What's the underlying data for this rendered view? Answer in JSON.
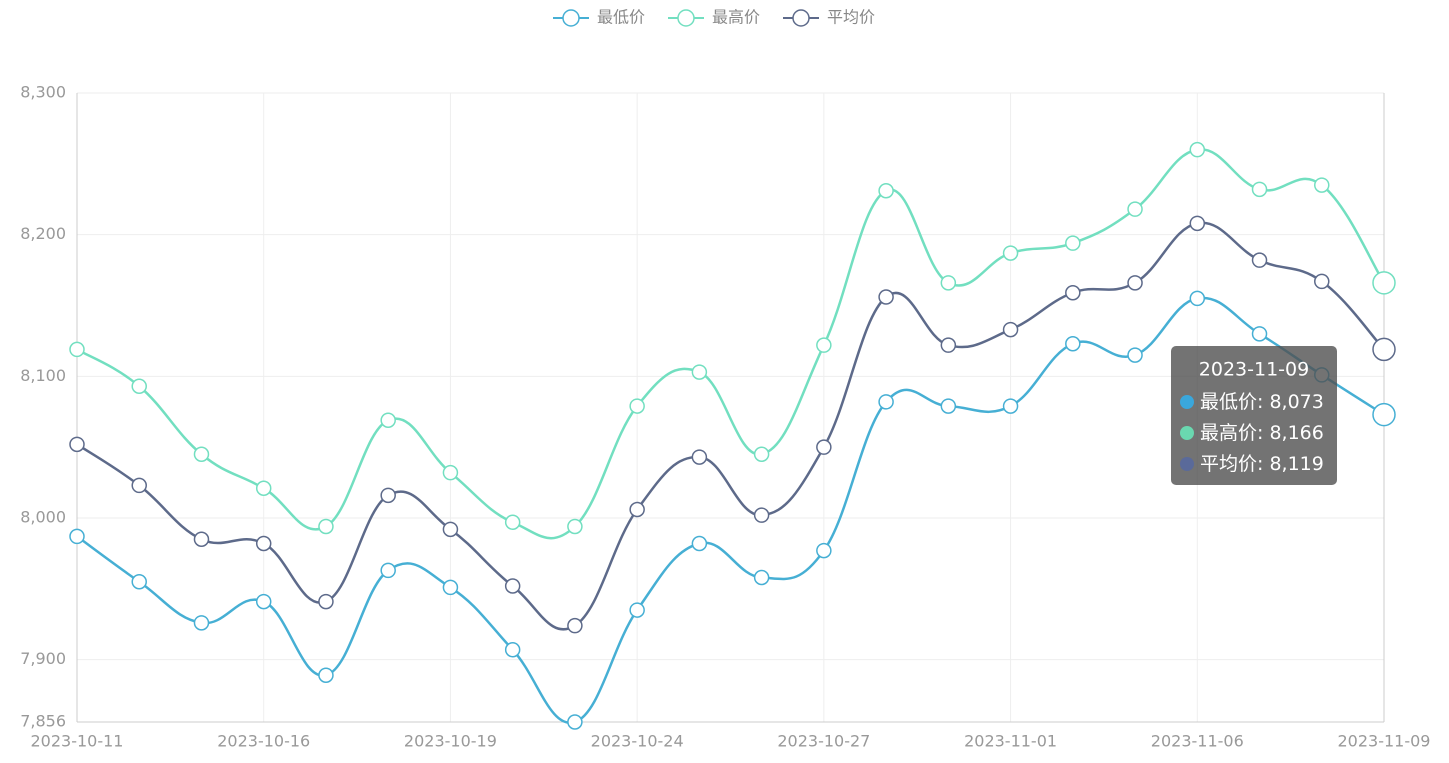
{
  "chart_data": {
    "type": "line",
    "categories": [
      "2023-10-11",
      null,
      null,
      "2023-10-16",
      null,
      null,
      "2023-10-19",
      null,
      null,
      "2023-10-24",
      null,
      null,
      "2023-10-27",
      null,
      null,
      "2023-11-01",
      null,
      null,
      "2023-11-06",
      null,
      null,
      "2023-11-09"
    ],
    "series": [
      {
        "name": "最低价",
        "color": "#46afd4",
        "values": [
          7987,
          7955,
          7926,
          7941,
          7889,
          7963,
          7951,
          7907,
          7856,
          7935,
          7982,
          7958,
          7977,
          8082,
          8079,
          8079,
          8123,
          8115,
          8155,
          8130,
          8101,
          8073
        ]
      },
      {
        "name": "最高价",
        "color": "#72dfc0",
        "values": [
          8119,
          8093,
          8045,
          8021,
          7994,
          8069,
          8032,
          7997,
          7994,
          8079,
          8103,
          8045,
          8122,
          8231,
          8166,
          8187,
          8194,
          8218,
          8260,
          8232,
          8235,
          8166
        ]
      },
      {
        "name": "平均价",
        "color": "#5d6a8a",
        "values": [
          8052,
          8023,
          7985,
          7982,
          7941,
          8016,
          7992,
          7952,
          7924,
          8006,
          8043,
          8002,
          8050,
          8156,
          8122,
          8133,
          8159,
          8166,
          8208,
          8182,
          8167,
          8119
        ]
      }
    ],
    "ylim": [
      7856,
      8300
    ],
    "yticks": [
      {
        "value": 7856,
        "label": "7,856"
      },
      {
        "value": 7900,
        "label": "7,900"
      },
      {
        "value": 8000,
        "label": "8,000"
      },
      {
        "value": 8100,
        "label": "8,100"
      },
      {
        "value": 8200,
        "label": "8,200"
      },
      {
        "value": 8300,
        "label": "8,300"
      }
    ],
    "grid": true,
    "legend": "top",
    "tooltip": {
      "title": "2023-11-09",
      "dot_colors": [
        "#3aa7dc",
        "#6ad8b0",
        "#5a6a9a"
      ],
      "rows": [
        {
          "name": "最低价",
          "value": "8,073"
        },
        {
          "name": "最高价",
          "value": "8,166"
        },
        {
          "name": "平均价",
          "value": "8,119"
        }
      ]
    }
  }
}
